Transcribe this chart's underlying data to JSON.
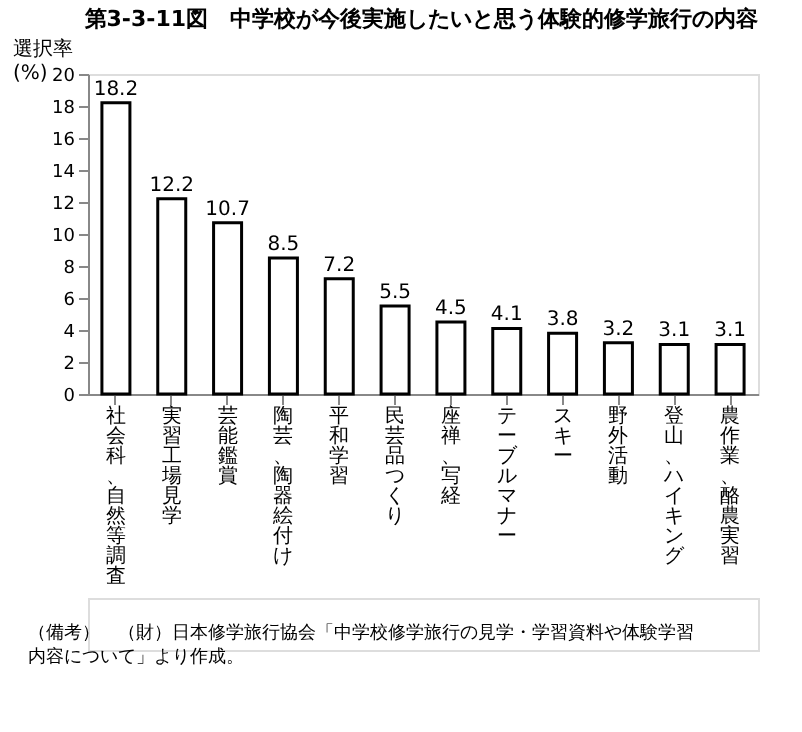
{
  "chart_data": {
    "type": "bar",
    "title": "第3-3-11図　中学校が今後実施したいと思う体験的修学旅行の内容",
    "ylabel": "選択率\n(%)",
    "categories": [
      "社会科、自然等調査",
      "実習工場見学",
      "芸能鑑賞",
      "陶芸、陶器絵付け",
      "平和学習",
      "民芸品つくり",
      "座禅、写経",
      "テーブルマナー",
      "スキー",
      "野外活動",
      "登山、ハイキング",
      "農作業、酪農実習"
    ],
    "values": [
      18.2,
      12.2,
      10.7,
      8.5,
      7.2,
      5.5,
      4.5,
      4.1,
      3.8,
      3.2,
      3.1,
      3.1
    ],
    "color": "#ffffff",
    "data_labels": true,
    "ylim": [
      0,
      20
    ],
    "yticks": [
      0,
      2,
      4,
      6,
      8,
      10,
      12,
      14,
      16,
      18,
      20
    ],
    "grid": false,
    "annotations": [
      "（備考）　（財）日本修学旅行協会「中学校修学旅行の見学・学習資料や体験学習内容について」より作成。"
    ]
  }
}
